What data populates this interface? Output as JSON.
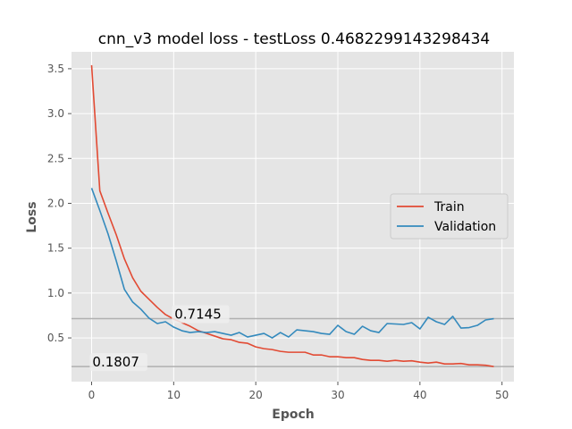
{
  "chart_data": {
    "type": "line",
    "title": "cnn_v3 model loss - testLoss 0.4682299143298434",
    "xlabel": "Epoch",
    "ylabel": "Loss",
    "xlim": [
      -2.45,
      51.45
    ],
    "ylim": [
      0.0126,
      3.6883
    ],
    "xticks": [
      0,
      10,
      20,
      30,
      40,
      50
    ],
    "yticks": [
      0.5,
      1.0,
      1.5,
      2.0,
      2.5,
      3.0,
      3.5
    ],
    "ytick_labels": [
      "0.5",
      "1.0",
      "1.5",
      "2.0",
      "2.5",
      "3.0",
      "3.5"
    ],
    "grid": true,
    "legend_position": "center-right",
    "series": [
      {
        "name": "Train",
        "color": "#E24A33",
        "x": [
          0,
          1,
          2,
          3,
          4,
          5,
          6,
          7,
          8,
          9,
          10,
          11,
          12,
          13,
          14,
          15,
          16,
          17,
          18,
          19,
          20,
          21,
          22,
          23,
          24,
          25,
          26,
          27,
          28,
          29,
          30,
          31,
          32,
          33,
          34,
          35,
          36,
          37,
          38,
          39,
          40,
          41,
          42,
          43,
          44,
          45,
          46,
          47,
          48,
          49
        ],
        "values": [
          3.54,
          2.14,
          1.89,
          1.65,
          1.38,
          1.17,
          1.02,
          0.93,
          0.84,
          0.76,
          0.71,
          0.67,
          0.63,
          0.58,
          0.55,
          0.52,
          0.49,
          0.48,
          0.45,
          0.44,
          0.4,
          0.38,
          0.37,
          0.35,
          0.34,
          0.34,
          0.34,
          0.31,
          0.31,
          0.29,
          0.29,
          0.28,
          0.28,
          0.26,
          0.25,
          0.25,
          0.24,
          0.25,
          0.24,
          0.245,
          0.23,
          0.22,
          0.23,
          0.21,
          0.21,
          0.215,
          0.2,
          0.2,
          0.195,
          0.1807
        ]
      },
      {
        "name": "Validation",
        "color": "#348ABD",
        "x": [
          0,
          1,
          2,
          3,
          4,
          5,
          6,
          7,
          8,
          9,
          10,
          11,
          12,
          13,
          14,
          15,
          16,
          17,
          18,
          19,
          20,
          21,
          22,
          23,
          24,
          25,
          26,
          27,
          28,
          29,
          30,
          31,
          32,
          33,
          34,
          35,
          36,
          37,
          38,
          39,
          40,
          41,
          42,
          43,
          44,
          45,
          46,
          47,
          48,
          49
        ],
        "values": [
          2.17,
          1.92,
          1.66,
          1.36,
          1.04,
          0.9,
          0.82,
          0.72,
          0.66,
          0.68,
          0.62,
          0.58,
          0.56,
          0.57,
          0.56,
          0.57,
          0.55,
          0.53,
          0.56,
          0.51,
          0.53,
          0.55,
          0.5,
          0.56,
          0.51,
          0.59,
          0.58,
          0.57,
          0.55,
          0.54,
          0.64,
          0.57,
          0.54,
          0.63,
          0.58,
          0.56,
          0.66,
          0.655,
          0.65,
          0.67,
          0.6,
          0.73,
          0.68,
          0.65,
          0.74,
          0.61,
          0.615,
          0.64,
          0.7,
          0.7145
        ]
      }
    ],
    "hlines": [
      {
        "y": 0.7145,
        "label": "0.7145",
        "label_x": 10.1,
        "color": "#b0b0b0"
      },
      {
        "y": 0.1807,
        "label": "0.1807",
        "label_x": 0.1,
        "color": "#b0b0b0"
      }
    ]
  }
}
